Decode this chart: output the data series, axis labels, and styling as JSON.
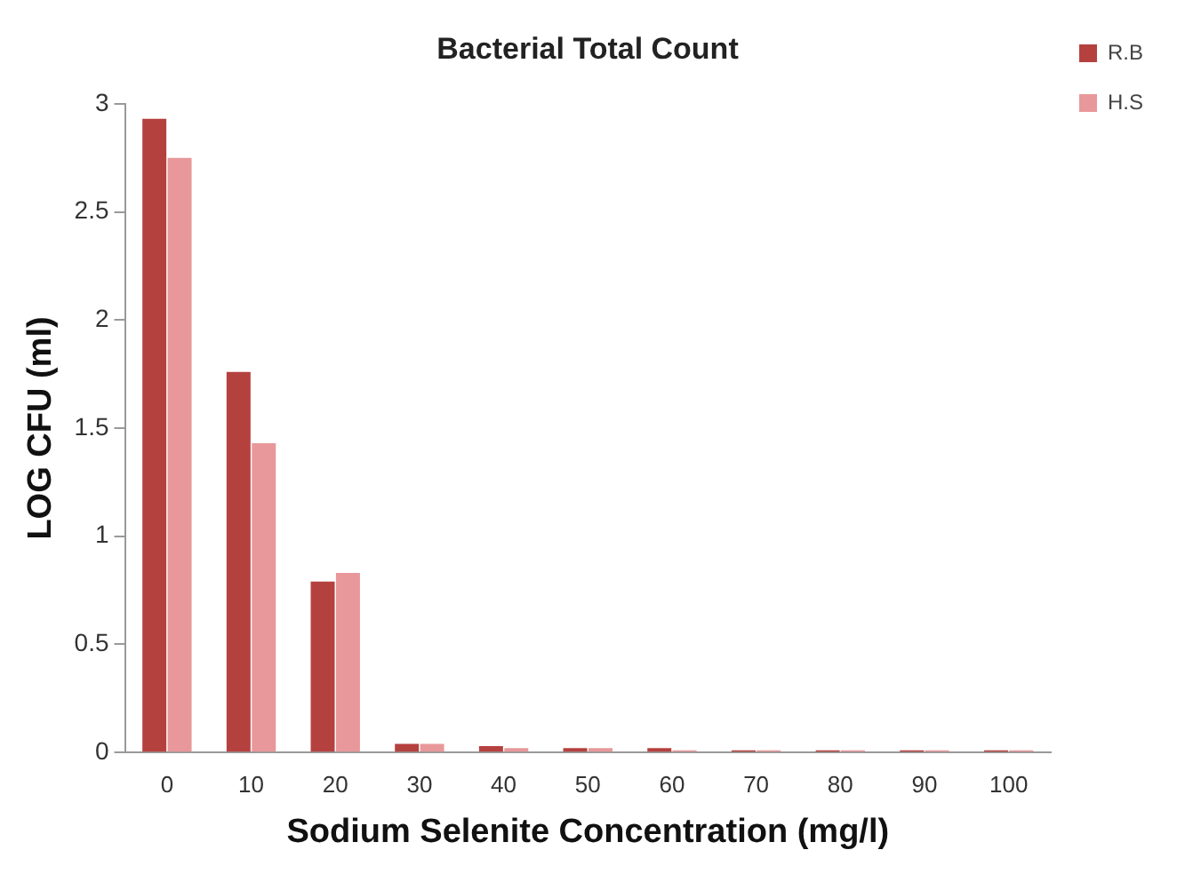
{
  "chart_data": {
    "type": "bar",
    "title": "Bacterial Total Count",
    "xlabel": "Sodium Selenite Concentration (mg/l)",
    "ylabel": "LOG CFU (ml)",
    "categories": [
      "0",
      "10",
      "20",
      "30",
      "40",
      "50",
      "60",
      "70",
      "80",
      "90",
      "100"
    ],
    "series": [
      {
        "name": "R.B",
        "color": "#b5413f",
        "values": [
          2.93,
          1.76,
          0.79,
          0.04,
          0.03,
          0.02,
          0.02,
          0.01,
          0.01,
          0.01,
          0.01
        ]
      },
      {
        "name": "H.S",
        "color": "#e8989a",
        "values": [
          2.75,
          1.43,
          0.83,
          0.04,
          0.02,
          0.02,
          0.01,
          0.01,
          0.01,
          0.01,
          0.01
        ]
      }
    ],
    "ylim": [
      0,
      3
    ],
    "yticks": [
      0,
      0.5,
      1,
      1.5,
      2,
      2.5,
      3
    ],
    "grid": false,
    "legend": "top right"
  }
}
